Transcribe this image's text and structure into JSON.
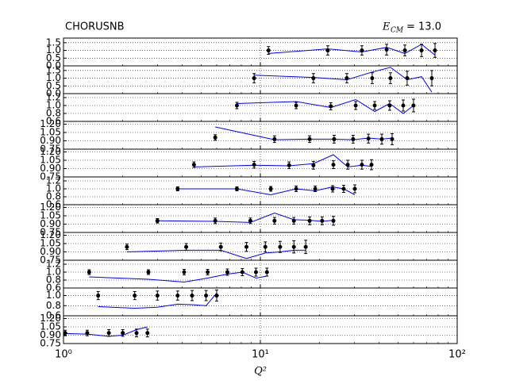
{
  "chart_data": {
    "type": "errorbar-panels",
    "title": "CHORUSNB",
    "annotation": {
      "symbol": "E",
      "subscript": "CM",
      "text": "= 13.0"
    },
    "xlabel": "Q²",
    "log_x": true,
    "xlim": [
      1,
      100
    ],
    "xticks": [
      {
        "value": 1,
        "label": "10⁰"
      },
      {
        "value": 10,
        "label": "10¹"
      },
      {
        "value": 100,
        "label": "10²"
      }
    ],
    "grid": true,
    "panels": [
      {
        "ylim": [
          0,
          1.8
        ],
        "yticks": [
          {
            "value": 0,
            "label": "0.0"
          },
          0.5,
          {
            "value": 1,
            "label": "1.0"
          },
          1.5
        ],
        "points": {
          "color": "#000000",
          "x": [
            11.0,
            22,
            32.8,
            43.8,
            54.2,
            65.9,
            77.1
          ],
          "values": [
            1.0,
            1.0,
            1.0,
            1.05,
            1.0,
            1.0,
            1.0
          ],
          "errors": [
            0.25,
            0.3,
            0.3,
            0.35,
            0.35,
            0.4,
            0.45
          ]
        },
        "theory": {
          "color": "#0000ff",
          "x": [
            11.0,
            22,
            32.8,
            43.8,
            54.2,
            65.9,
            77.1
          ],
          "values": [
            0.8,
            1.1,
            0.9,
            1.2,
            0.8,
            1.4,
            0.7
          ]
        }
      },
      {
        "ylim": [
          0,
          1.8
        ],
        "yticks": [
          {
            "value": 0,
            "label": "0.0"
          },
          0.5,
          {
            "value": 1,
            "label": "1.0"
          },
          1.5
        ],
        "points": {
          "color": "#000000",
          "x": [
            9.3,
            18.6,
            27.5,
            37,
            45.8,
            55.7,
            74.3
          ],
          "values": [
            1.0,
            1.0,
            1.0,
            1.0,
            1.0,
            1.0,
            1.0
          ],
          "errors": [
            0.3,
            0.3,
            0.3,
            0.35,
            0.35,
            0.45,
            0.5
          ]
        },
        "theory": {
          "color": "#0000ff",
          "x": [
            9.3,
            18.6,
            27.5,
            37,
            45.8,
            55.7,
            65.9,
            74.3
          ],
          "values": [
            1.2,
            1.05,
            0.9,
            1.4,
            1.7,
            0.9,
            1.1,
            0.1
          ]
        }
      },
      {
        "ylim": [
          0.6,
          1.3
        ],
        "yticks": [
          0.6,
          0.8,
          {
            "value": 1,
            "label": "1.0"
          },
          1.2
        ],
        "points": {
          "color": "#000000",
          "x": [
            7.6,
            15.2,
            22.8,
            30.5,
            38.1,
            45.4,
            53.2,
            60
          ],
          "values": [
            1.0,
            1.0,
            0.98,
            1.0,
            1.0,
            1.0,
            1.0,
            1.0
          ],
          "errors": [
            0.08,
            0.08,
            0.09,
            0.1,
            0.1,
            0.12,
            0.14,
            0.16
          ]
        },
        "theory": {
          "color": "#0000ff",
          "x": [
            7.6,
            15.2,
            22.8,
            30.5,
            38.1,
            45.4,
            53.2,
            60
          ],
          "values": [
            1.05,
            1.1,
            0.95,
            1.15,
            0.85,
            1.05,
            0.8,
            1.0
          ]
        }
      },
      {
        "ylim": [
          0.75,
          1.25
        ],
        "yticks": [
          0.75,
          {
            "value": 0.9,
            "label": "0.90"
          },
          1.05,
          {
            "value": 1.2,
            "label": "1.20"
          }
        ],
        "points": {
          "color": "#000000",
          "x": [
            5.9,
            11.8,
            17.8,
            23.7,
            29.6,
            35.4,
            41.4,
            46.7
          ],
          "values": [
            0.96,
            0.93,
            0.93,
            0.93,
            0.93,
            0.94,
            0.93,
            0.93
          ],
          "errors": [
            0.05,
            0.06,
            0.06,
            0.07,
            0.07,
            0.08,
            0.09,
            0.1
          ]
        },
        "theory": {
          "color": "#0000ff",
          "x": [
            5.9,
            11.8,
            17.8,
            23.7,
            29.6,
            35.4,
            41.4,
            46.7
          ],
          "values": [
            1.15,
            0.92,
            0.93,
            0.93,
            0.92,
            0.95,
            0.93,
            0.95
          ]
        }
      },
      {
        "ylim": [
          0.75,
          1.25
        ],
        "yticks": [
          0.75,
          {
            "value": 0.9,
            "label": "0.90"
          },
          1.05,
          {
            "value": 1.2,
            "label": "1.20"
          }
        ],
        "points": {
          "color": "#000000",
          "x": [
            4.6,
            9.3,
            14,
            18.6,
            23.5,
            27.8,
            32.8,
            36.7
          ],
          "values": [
            0.97,
            0.97,
            0.96,
            0.96,
            0.97,
            0.97,
            0.97,
            0.97
          ],
          "errors": [
            0.05,
            0.06,
            0.06,
            0.07,
            0.07,
            0.08,
            0.08,
            0.09
          ]
        },
        "theory": {
          "color": "#0000ff",
          "x": [
            4.6,
            9.3,
            14,
            18.6,
            23.5,
            27.8,
            32.8,
            36.7
          ],
          "values": [
            0.93,
            0.96,
            0.95,
            0.99,
            1.15,
            0.93,
            0.96,
            0.94
          ]
        }
      },
      {
        "ylim": [
          0.6,
          1.3
        ],
        "yticks": [
          0.6,
          0.8,
          {
            "value": 1,
            "label": "1.0"
          },
          1.2
        ],
        "points": {
          "color": "#000000",
          "x": [
            3.8,
            7.6,
            11.3,
            15.2,
            19,
            23.3,
            26.5,
            30.2
          ],
          "values": [
            1.0,
            1.0,
            1.0,
            1.0,
            1.0,
            1.0,
            1.0,
            1.0
          ],
          "errors": [
            0.05,
            0.05,
            0.06,
            0.07,
            0.07,
            0.08,
            0.09,
            0.1
          ]
        },
        "theory": {
          "color": "#0000ff",
          "x": [
            3.8,
            7.6,
            11.3,
            15.2,
            19,
            23.3,
            26.5,
            30.2
          ],
          "values": [
            1.0,
            1.0,
            0.85,
            1.0,
            0.95,
            1.05,
            1.0,
            0.85
          ]
        }
      },
      {
        "ylim": [
          0.75,
          1.25
        ],
        "yticks": [
          0.75,
          {
            "value": 0.9,
            "label": "0.90"
          },
          1.05,
          {
            "value": 1.2,
            "label": "1.20"
          }
        ],
        "points": {
          "color": "#000000",
          "x": [
            3.0,
            5.9,
            8.9,
            11.8,
            14.8,
            17.8,
            20.6,
            23.5
          ],
          "values": [
            0.96,
            0.96,
            0.96,
            0.96,
            0.96,
            0.96,
            0.96,
            0.96
          ],
          "errors": [
            0.04,
            0.05,
            0.05,
            0.06,
            0.06,
            0.07,
            0.07,
            0.08
          ]
        },
        "theory": {
          "color": "#0000ff",
          "x": [
            3.0,
            5.9,
            8.9,
            11.8,
            14.8,
            17.8,
            20.6,
            23.5
          ],
          "values": [
            0.96,
            0.95,
            0.93,
            1.1,
            0.98,
            0.97,
            0.95,
            0.97
          ]
        }
      },
      {
        "ylim": [
          0.75,
          1.25
        ],
        "yticks": [
          0.75,
          {
            "value": 0.9,
            "label": "0.90"
          },
          1.05,
          {
            "value": 1.2,
            "label": "1.20"
          }
        ],
        "points": {
          "color": "#000000",
          "x": [
            2.1,
            4.2,
            6.3,
            8.5,
            10.6,
            12.6,
            14.8,
            17
          ],
          "values": [
            0.99,
            0.99,
            0.99,
            0.99,
            0.99,
            0.99,
            0.99,
            0.99
          ],
          "errors": [
            0.05,
            0.06,
            0.07,
            0.08,
            0.09,
            0.1,
            0.11,
            0.12
          ]
        },
        "theory": {
          "color": "#0000ff",
          "x": [
            2.1,
            4.2,
            6.3,
            8.5,
            10.6,
            12.6,
            14.8,
            17
          ],
          "values": [
            0.9,
            0.93,
            0.93,
            0.78,
            0.88,
            0.9,
            0.93,
            0.93
          ]
        }
      },
      {
        "ylim": [
          0.6,
          1.3
        ],
        "yticks": [
          0.6,
          0.8,
          {
            "value": 1,
            "label": "1.0"
          },
          1.2
        ],
        "points": {
          "color": "#000000",
          "x": [
            1.35,
            2.7,
            4.1,
            5.4,
            6.8,
            8.1,
            9.5,
            10.8
          ],
          "values": [
            1.0,
            1.0,
            1.0,
            1.0,
            1.0,
            1.0,
            1.0,
            1.0
          ],
          "errors": [
            0.06,
            0.06,
            0.07,
            0.07,
            0.08,
            0.09,
            0.1,
            0.1
          ]
        },
        "theory": {
          "color": "#0000ff",
          "x": [
            1.35,
            2.7,
            4.1,
            5.4,
            6.8,
            8.1,
            9.5,
            10.8
          ],
          "values": [
            0.88,
            0.82,
            0.75,
            0.85,
            0.95,
            1.0,
            0.85,
            0.9
          ]
        }
      },
      {
        "ylim": [
          0.6,
          1.15
        ],
        "yticks": [
          0.6,
          0.8,
          {
            "value": 1,
            "label": "1.0"
          }
        ],
        "points": {
          "color": "#000000",
          "x": [
            1.5,
            2.3,
            3.0,
            3.8,
            4.5,
            5.3,
            6.0
          ],
          "values": [
            1.0,
            1.0,
            1.0,
            1.0,
            1.0,
            1.0,
            1.0
          ],
          "errors": [
            0.08,
            0.08,
            0.09,
            0.09,
            0.1,
            0.1,
            0.11
          ]
        },
        "theory": {
          "color": "#0000ff",
          "x": [
            1.5,
            2.3,
            3.0,
            3.8,
            4.5,
            5.3,
            6.0
          ],
          "values": [
            0.78,
            0.75,
            0.77,
            0.83,
            0.82,
            0.8,
            1.05
          ]
        }
      },
      {
        "ylim": [
          0.75,
          1.25
        ],
        "yticks": [
          0.75,
          {
            "value": 0.9,
            "label": "0.90"
          },
          1.05,
          {
            "value": 1.2,
            "label": "1.20"
          }
        ],
        "points": {
          "color": "#000000",
          "x": [
            1.02,
            1.32,
            1.7,
            2.0,
            2.35,
            2.67
          ],
          "values": [
            0.94,
            0.94,
            0.94,
            0.94,
            0.94,
            0.94
          ],
          "errors": [
            0.05,
            0.05,
            0.06,
            0.06,
            0.07,
            0.07
          ]
        },
        "theory": {
          "color": "#0000ff",
          "x": [
            1.02,
            1.32,
            1.7,
            2.0,
            2.35,
            2.67
          ],
          "values": [
            0.93,
            0.92,
            0.88,
            0.9,
            1.0,
            1.05
          ]
        }
      }
    ]
  }
}
